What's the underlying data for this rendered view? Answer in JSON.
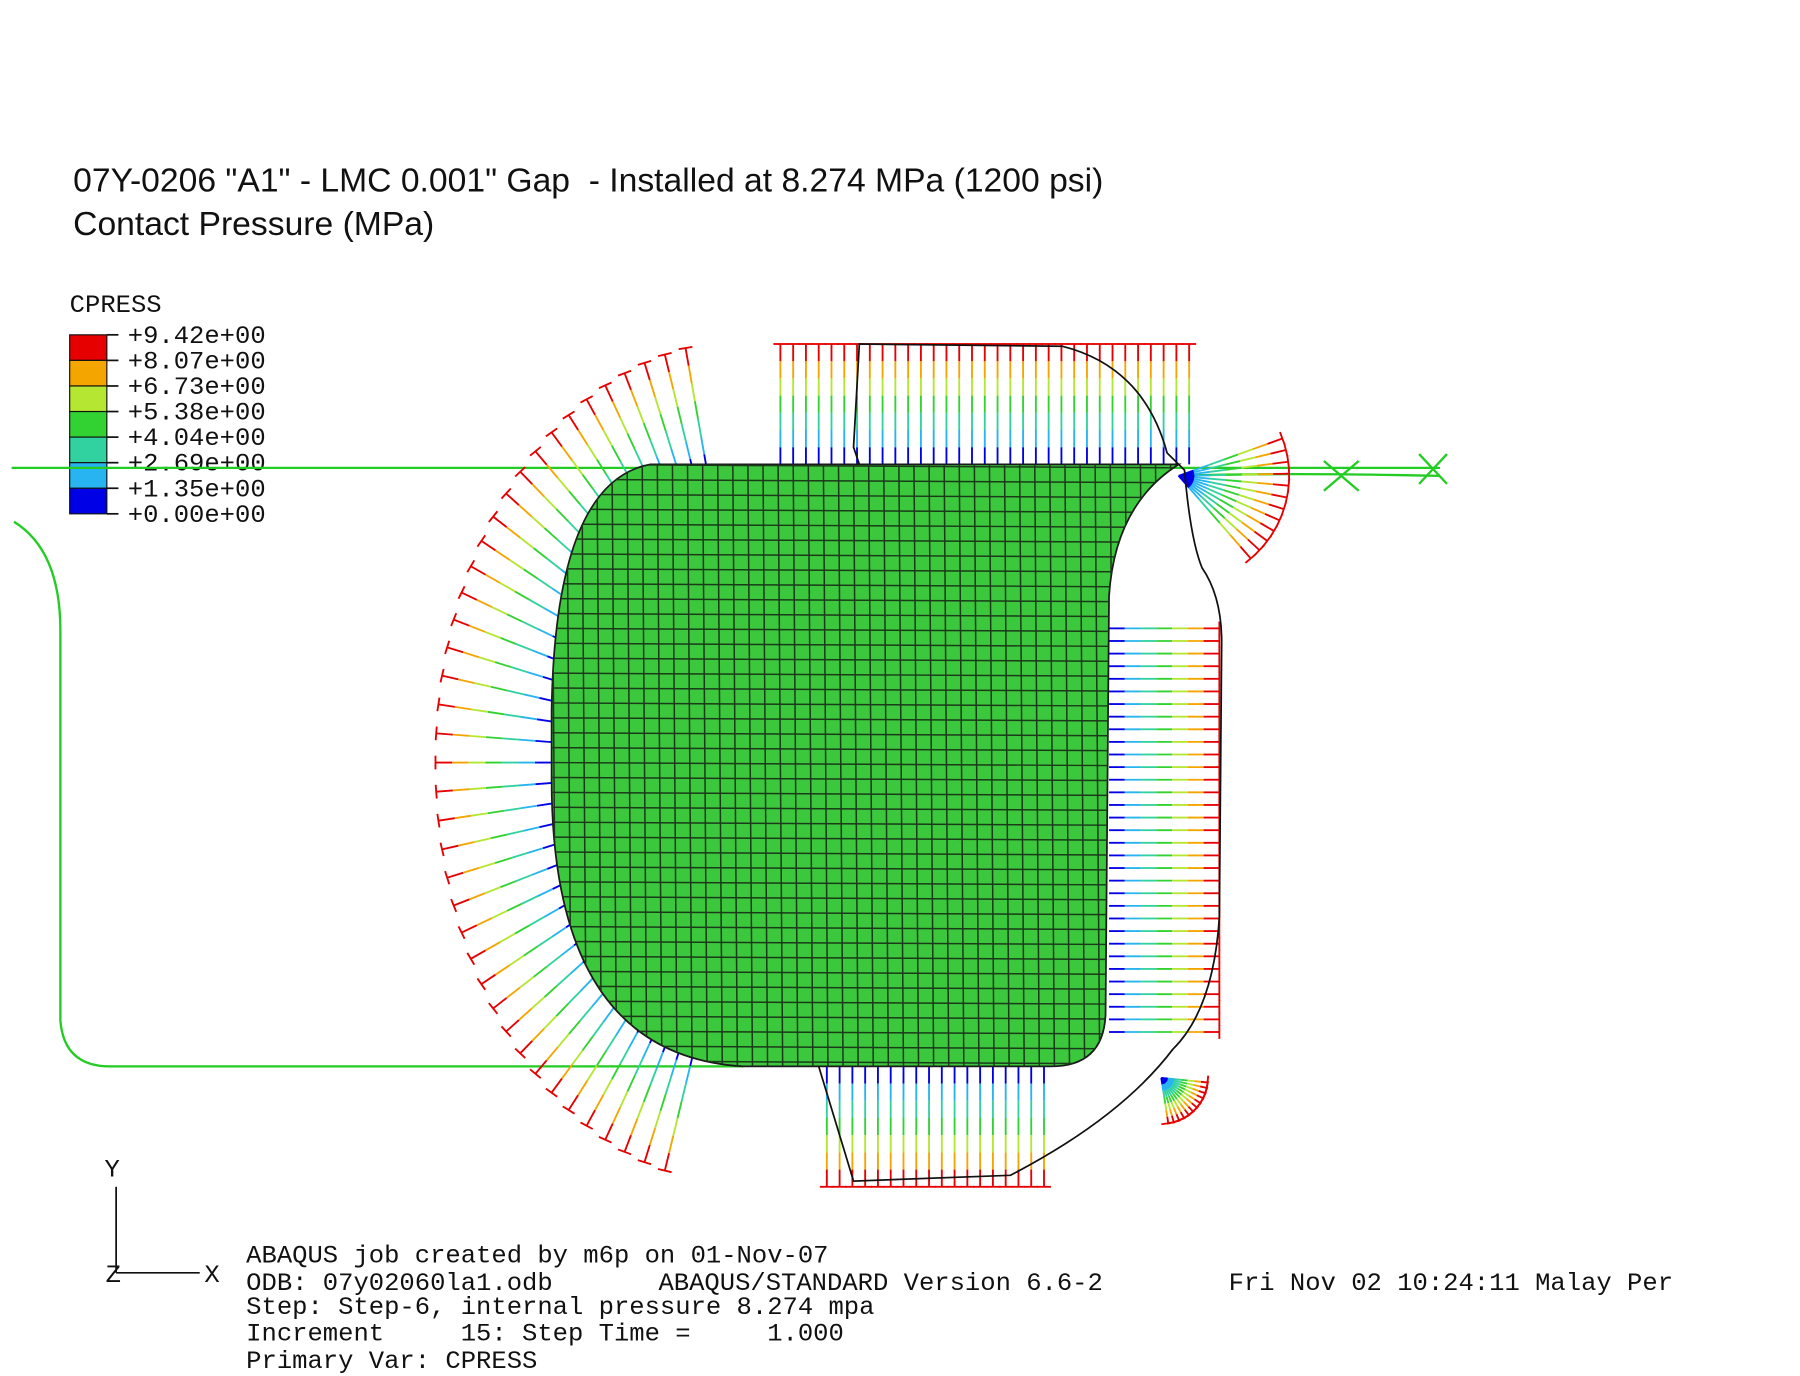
{
  "header": {
    "title": "07Y-0206 \"A1\" - LMC 0.001\" Gap  - Installed at 8.274 MPa (1200 psi)",
    "subtitle": "Contact Pressure (MPa)"
  },
  "legend": {
    "title": "CPRESS",
    "labels": [
      "+9.42e+00",
      "+8.07e+00",
      "+6.73e+00",
      "+5.38e+00",
      "+4.04e+00",
      "+2.69e+00",
      "+1.35e+00",
      "+0.00e+00"
    ],
    "colors": [
      "#e60000",
      "#f5a500",
      "#b4e632",
      "#32d232",
      "#32d2a0",
      "#28b4f0",
      "#0000e6"
    ]
  },
  "triad": {
    "y": "Y",
    "z": "Z",
    "x": "X"
  },
  "footer": {
    "job": "ABAQUS job created by m6p on 01-Nov-07",
    "odb": "ODB: 07y02060la1.odb",
    "version": "ABAQUS/STANDARD Version 6.6-2",
    "date": "Fri Nov 02 10:24:11 Malay Per",
    "step": "Step: Step-6, internal pressure 8.274 mpa",
    "increment": "Increment     15: Step Time =     1.000",
    "primary": "Primary Var: CPRESS"
  }
}
